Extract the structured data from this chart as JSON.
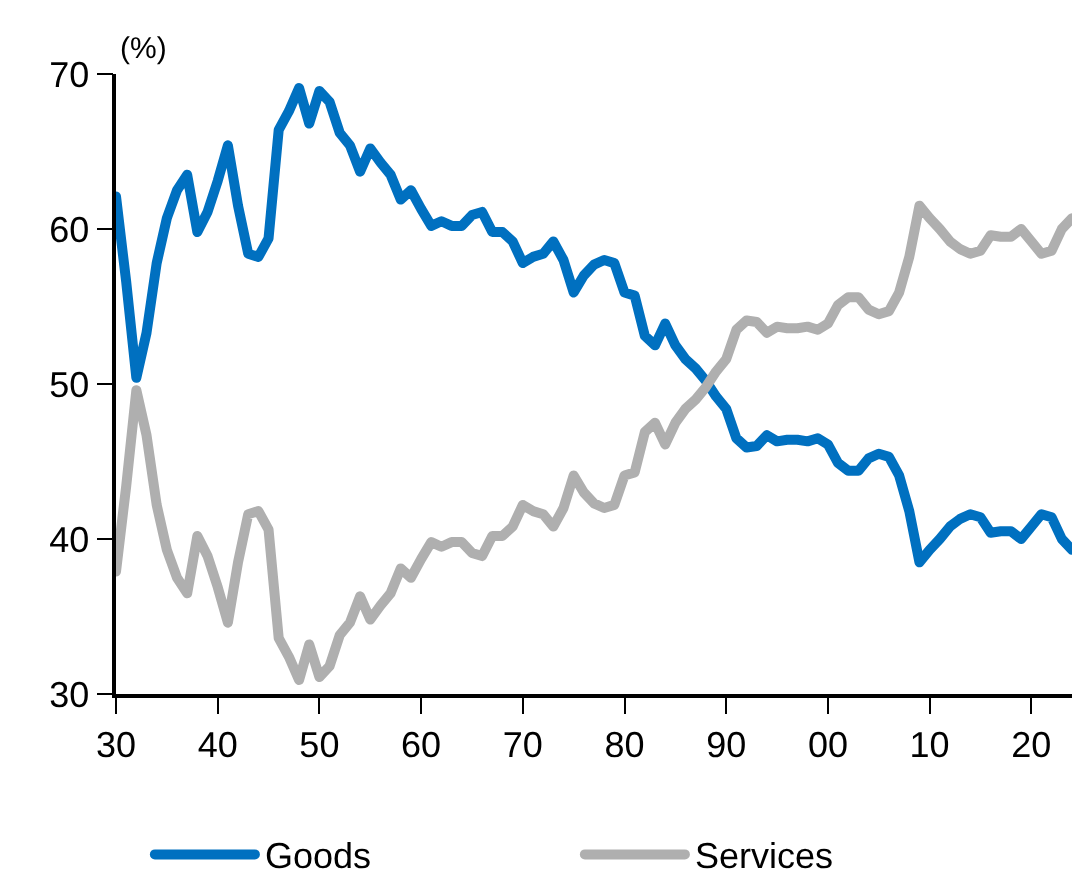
{
  "chart_data": {
    "type": "line",
    "ylabel": "(%)",
    "x": [
      1930,
      1931,
      1932,
      1933,
      1934,
      1935,
      1936,
      1937,
      1938,
      1939,
      1940,
      1941,
      1942,
      1943,
      1944,
      1945,
      1946,
      1947,
      1948,
      1949,
      1950,
      1951,
      1952,
      1953,
      1954,
      1955,
      1956,
      1957,
      1958,
      1959,
      1960,
      1961,
      1962,
      1963,
      1964,
      1965,
      1966,
      1967,
      1968,
      1969,
      1970,
      1971,
      1972,
      1973,
      1974,
      1975,
      1976,
      1977,
      1978,
      1979,
      1980,
      1981,
      1982,
      1983,
      1984,
      1985,
      1986,
      1987,
      1988,
      1989,
      1990,
      1991,
      1992,
      1993,
      1994,
      1995,
      1996,
      1997,
      1998,
      1999,
      2000,
      2001,
      2002,
      2003,
      2004,
      2005,
      2006,
      2007,
      2008,
      2009,
      2010,
      2011,
      2012,
      2013,
      2014,
      2015,
      2016,
      2017,
      2018,
      2019,
      2020,
      2021,
      2022,
      2023,
      2024
    ],
    "series": [
      {
        "name": "Goods",
        "color": "#0070c0",
        "values": [
          62.1,
          56.6,
          50.4,
          53.3,
          57.8,
          60.7,
          62.5,
          63.5,
          59.8,
          61.1,
          63.1,
          65.4,
          61.5,
          58.4,
          58.2,
          59.4,
          66.4,
          67.6,
          69.1,
          66.8,
          68.9,
          68.2,
          66.2,
          65.4,
          63.7,
          65.2,
          64.3,
          63.5,
          61.9,
          62.5,
          61.3,
          60.2,
          60.5,
          60.2,
          60.2,
          60.9,
          61.1,
          59.8,
          59.8,
          59.2,
          57.8,
          58.2,
          58.4,
          59.2,
          58.0,
          55.9,
          57.0,
          57.7,
          58.0,
          57.8,
          55.9,
          55.7,
          53.1,
          52.5,
          53.9,
          52.5,
          51.6,
          51.0,
          50.2,
          49.2,
          48.4,
          46.5,
          45.9,
          46.0,
          46.7,
          46.3,
          46.4,
          46.4,
          46.3,
          46.5,
          46.1,
          44.9,
          44.4,
          44.4,
          45.2,
          45.5,
          45.3,
          44.1,
          41.8,
          38.5,
          39.3,
          40.0,
          40.8,
          41.3,
          41.6,
          41.4,
          40.4,
          40.5,
          40.5,
          40.0,
          40.8,
          41.6,
          41.4,
          40.0,
          39.3
        ]
      },
      {
        "name": "Services",
        "color": "#afafaf",
        "values": [
          37.9,
          43.4,
          49.6,
          46.7,
          42.2,
          39.3,
          37.5,
          36.5,
          40.2,
          38.9,
          36.9,
          34.6,
          38.5,
          41.6,
          41.8,
          40.6,
          33.6,
          32.4,
          30.9,
          33.2,
          31.1,
          31.8,
          33.8,
          34.6,
          36.3,
          34.8,
          35.7,
          36.5,
          38.1,
          37.5,
          38.7,
          39.8,
          39.5,
          39.8,
          39.8,
          39.1,
          38.9,
          40.2,
          40.2,
          40.8,
          42.2,
          41.8,
          41.6,
          40.8,
          42.0,
          44.1,
          43.0,
          42.3,
          42.0,
          42.2,
          44.1,
          44.3,
          46.9,
          47.5,
          46.1,
          47.5,
          48.4,
          49.0,
          49.8,
          50.8,
          51.6,
          53.5,
          54.1,
          54.0,
          53.3,
          53.7,
          53.6,
          53.6,
          53.7,
          53.5,
          53.9,
          55.1,
          55.6,
          55.6,
          54.8,
          54.5,
          54.7,
          55.9,
          58.2,
          61.5,
          60.7,
          60.0,
          59.2,
          58.7,
          58.4,
          58.6,
          59.6,
          59.5,
          59.5,
          60.0,
          59.2,
          58.4,
          58.6,
          60.0,
          60.7
        ]
      }
    ],
    "xlim": [
      1930,
      2024
    ],
    "xticks": [
      {
        "value": 1930,
        "label": "30"
      },
      {
        "value": 1940,
        "label": "40"
      },
      {
        "value": 1950,
        "label": "50"
      },
      {
        "value": 1960,
        "label": "60"
      },
      {
        "value": 1970,
        "label": "70"
      },
      {
        "value": 1980,
        "label": "80"
      },
      {
        "value": 1990,
        "label": "90"
      },
      {
        "value": 2000,
        "label": "00"
      },
      {
        "value": 2010,
        "label": "10"
      },
      {
        "value": 2020,
        "label": "20"
      }
    ],
    "ylim": [
      30,
      70
    ],
    "yticks": [
      30,
      40,
      50,
      60,
      70
    ],
    "legend": "bottom",
    "marker": "none",
    "line_style": "solid"
  }
}
